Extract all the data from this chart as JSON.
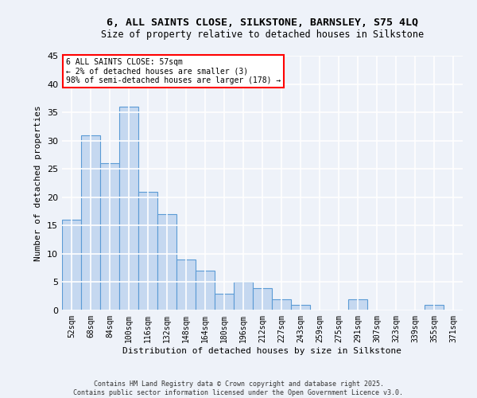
{
  "title": "6, ALL SAINTS CLOSE, SILKSTONE, BARNSLEY, S75 4LQ",
  "subtitle": "Size of property relative to detached houses in Silkstone",
  "xlabel": "Distribution of detached houses by size in Silkstone",
  "ylabel": "Number of detached properties",
  "categories": [
    "52sqm",
    "68sqm",
    "84sqm",
    "100sqm",
    "116sqm",
    "132sqm",
    "148sqm",
    "164sqm",
    "180sqm",
    "196sqm",
    "212sqm",
    "227sqm",
    "243sqm",
    "259sqm",
    "275sqm",
    "291sqm",
    "307sqm",
    "323sqm",
    "339sqm",
    "355sqm",
    "371sqm"
  ],
  "values": [
    16,
    31,
    26,
    36,
    21,
    17,
    9,
    7,
    3,
    5,
    4,
    2,
    1,
    0,
    0,
    2,
    0,
    0,
    0,
    1,
    0
  ],
  "bar_color": "#c5d8f0",
  "bar_edge_color": "#5b9bd5",
  "annotation_text": "6 ALL SAINTS CLOSE: 57sqm\n← 2% of detached houses are smaller (3)\n98% of semi-detached houses are larger (178) →",
  "annotation_box_color": "white",
  "annotation_box_edge_color": "red",
  "ylim": [
    0,
    45
  ],
  "yticks": [
    0,
    5,
    10,
    15,
    20,
    25,
    30,
    35,
    40,
    45
  ],
  "background_color": "#eef2f9",
  "grid_color": "white",
  "footer_line1": "Contains HM Land Registry data © Crown copyright and database right 2025.",
  "footer_line2": "Contains public sector information licensed under the Open Government Licence v3.0."
}
